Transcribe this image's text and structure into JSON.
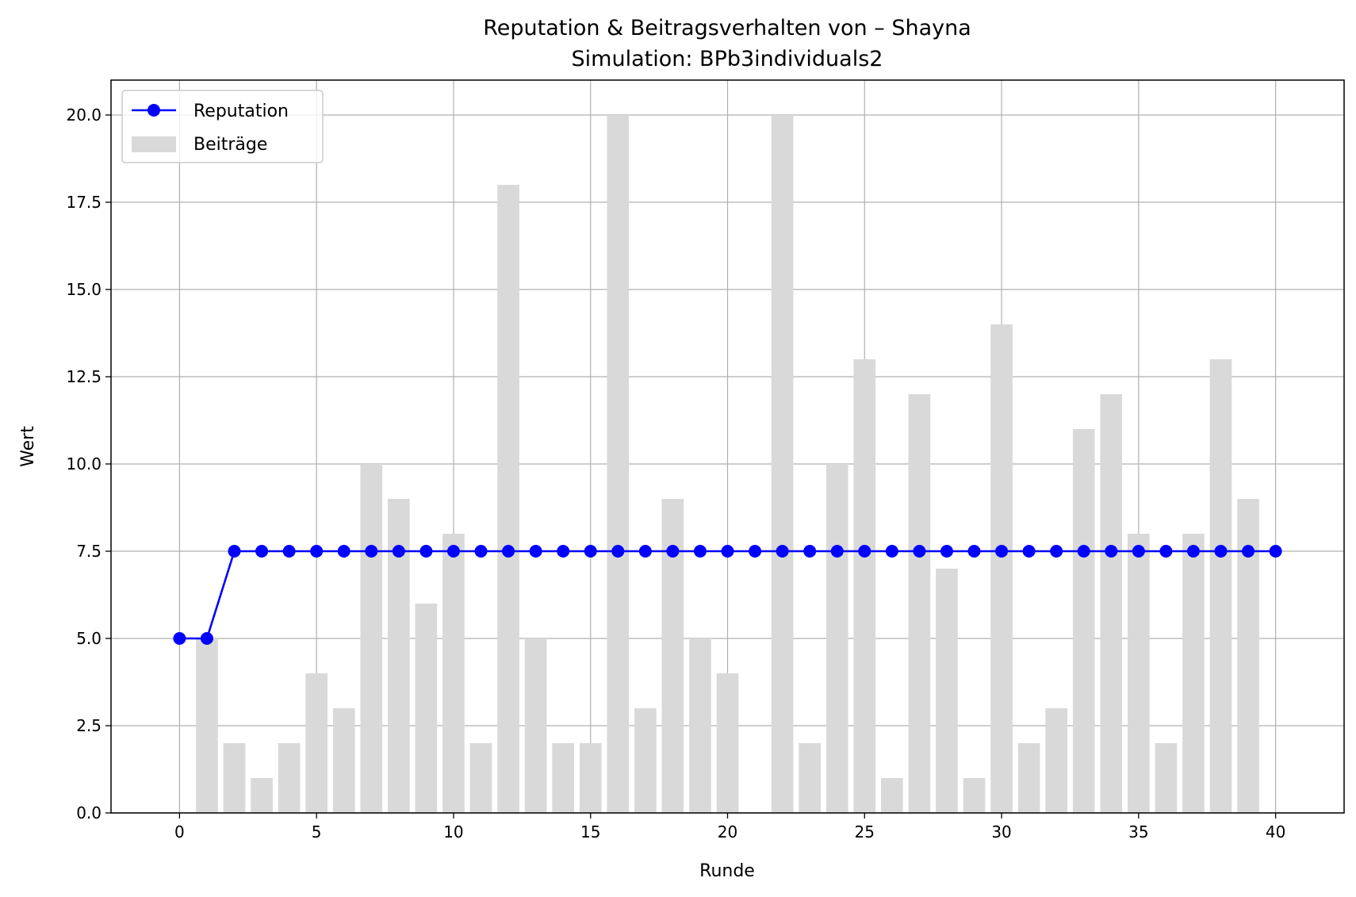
{
  "chart_data": {
    "type": "bar+line",
    "title": "Reputation & Beitragsverhalten von – Shayna",
    "subtitle": "Simulation: BPb3individuals2",
    "xlabel": "Runde",
    "ylabel": "Wert",
    "xlim": [
      -2.5,
      42.5
    ],
    "ylim": [
      0,
      21
    ],
    "xticks": [
      0,
      5,
      10,
      15,
      20,
      25,
      30,
      35,
      40
    ],
    "xtick_labels": [
      "0",
      "5",
      "10",
      "15",
      "20",
      "25",
      "30",
      "35",
      "40"
    ],
    "yticks": [
      0,
      2.5,
      5,
      7.5,
      10,
      12.5,
      15,
      17.5,
      20
    ],
    "ytick_labels": [
      "0.0",
      "2.5",
      "5.0",
      "7.5",
      "10.0",
      "12.5",
      "15.0",
      "17.5",
      "20.0"
    ],
    "grid": true,
    "legend_position": "top-left",
    "series": [
      {
        "name": "Reputation",
        "type": "line",
        "color": "#0000ff",
        "marker": "circle",
        "x": [
          0,
          1,
          2,
          3,
          4,
          5,
          6,
          7,
          8,
          9,
          10,
          11,
          12,
          13,
          14,
          15,
          16,
          17,
          18,
          19,
          20,
          21,
          22,
          23,
          24,
          25,
          26,
          27,
          28,
          29,
          30,
          31,
          32,
          33,
          34,
          35,
          36,
          37,
          38,
          39,
          40
        ],
        "values": [
          5,
          5,
          7.5,
          7.5,
          7.5,
          7.5,
          7.5,
          7.5,
          7.5,
          7.5,
          7.5,
          7.5,
          7.5,
          7.5,
          7.5,
          7.5,
          7.5,
          7.5,
          7.5,
          7.5,
          7.5,
          7.5,
          7.5,
          7.5,
          7.5,
          7.5,
          7.5,
          7.5,
          7.5,
          7.5,
          7.5,
          7.5,
          7.5,
          7.5,
          7.5,
          7.5,
          7.5,
          7.5,
          7.5,
          7.5,
          7.5
        ]
      },
      {
        "name": "Beiträge",
        "type": "bar",
        "color": "#d9d9d9",
        "x": [
          1,
          2,
          3,
          4,
          5,
          6,
          7,
          8,
          9,
          10,
          11,
          12,
          13,
          14,
          15,
          16,
          17,
          18,
          19,
          20,
          21,
          22,
          23,
          24,
          25,
          26,
          27,
          28,
          29,
          30,
          31,
          32,
          33,
          34,
          35,
          36,
          37,
          38,
          39
        ],
        "values": [
          5,
          2,
          1,
          2,
          4,
          3,
          10,
          9,
          6,
          8,
          2,
          18,
          5,
          2,
          2,
          20,
          3,
          9,
          5,
          4,
          0,
          20,
          2,
          10,
          13,
          1,
          12,
          7,
          1,
          14,
          2,
          3,
          11,
          12,
          8,
          2,
          8,
          13,
          9
        ]
      }
    ]
  }
}
